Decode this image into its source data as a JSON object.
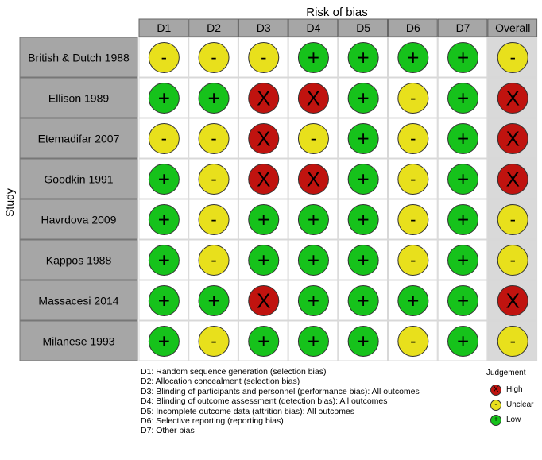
{
  "chart_data": {
    "type": "table",
    "title": "Risk of bias",
    "ylabel": "Study",
    "domains": [
      "D1",
      "D2",
      "D3",
      "D4",
      "D5",
      "D6",
      "D7",
      "Overall"
    ],
    "studies": [
      {
        "name": "British & Dutch 1988",
        "judgements": [
          "Unclear",
          "Unclear",
          "Unclear",
          "Low",
          "Low",
          "Low",
          "Low",
          "Unclear"
        ]
      },
      {
        "name": "Ellison 1989",
        "judgements": [
          "Low",
          "Low",
          "High",
          "High",
          "Low",
          "Unclear",
          "Low",
          "High"
        ]
      },
      {
        "name": "Etemadifar 2007",
        "judgements": [
          "Unclear",
          "Unclear",
          "High",
          "Unclear",
          "Low",
          "Unclear",
          "Low",
          "High"
        ]
      },
      {
        "name": "Goodkin 1991",
        "judgements": [
          "Low",
          "Unclear",
          "High",
          "High",
          "Low",
          "Unclear",
          "Low",
          "High"
        ]
      },
      {
        "name": "Havrdova 2009",
        "judgements": [
          "Low",
          "Unclear",
          "Low",
          "Low",
          "Low",
          "Unclear",
          "Low",
          "Unclear"
        ]
      },
      {
        "name": "Kappos 1988",
        "judgements": [
          "Low",
          "Unclear",
          "Low",
          "Low",
          "Low",
          "Unclear",
          "Low",
          "Unclear"
        ]
      },
      {
        "name": "Massacesi 2014",
        "judgements": [
          "Low",
          "Low",
          "High",
          "Low",
          "Low",
          "Low",
          "Low",
          "High"
        ]
      },
      {
        "name": "Milanese 1993",
        "judgements": [
          "Low",
          "Unclear",
          "Low",
          "Low",
          "Low",
          "Unclear",
          "Low",
          "Unclear"
        ]
      }
    ],
    "symbols": {
      "High": "X",
      "Unclear": "-",
      "Low": "+"
    },
    "colors": {
      "High": "#c0130f",
      "Unclear": "#e8e01c",
      "Low": "#16c21b",
      "header": "#a6a6a6",
      "overall_bg": "#d9d9d9",
      "grid": "#ffffff"
    },
    "legend": {
      "title": "Judgement",
      "items": [
        {
          "key": "High",
          "symbol": "X",
          "label": "High"
        },
        {
          "key": "Unclear",
          "symbol": "-",
          "label": "Unclear"
        },
        {
          "key": "Low",
          "symbol": "+",
          "label": "Low"
        }
      ]
    },
    "footnotes": [
      "D1: Random sequence generation (selection bias)",
      "D2: Allocation concealment (selection bias)",
      "D3: Blinding of participants and personnel (performance bias): All outcomes",
      "D4: Blinding of outcome assessment (detection bias): All outcomes",
      "D5: Incomplete outcome data (attrition bias): All outcomes",
      "D6: Selective reporting (reporting bias)",
      "D7: Other bias"
    ]
  }
}
